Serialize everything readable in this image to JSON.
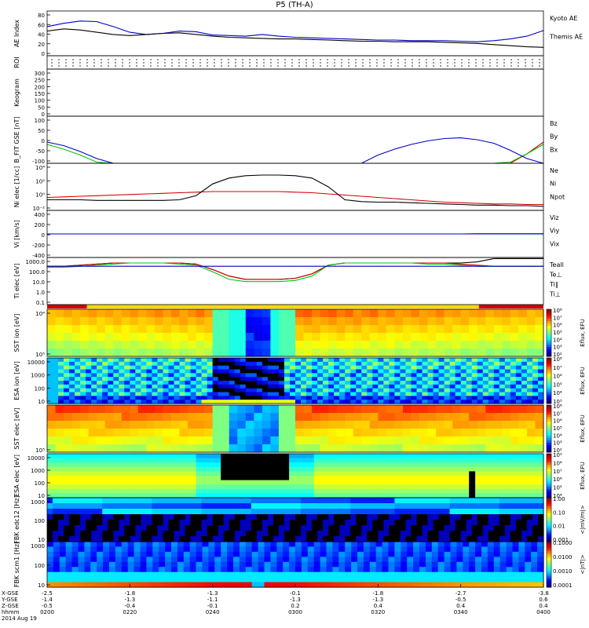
{
  "title": "P5 (TH-A)",
  "colors": {
    "black": "#000000",
    "red": "#d40000",
    "green": "#00c800",
    "blue": "#0000c8",
    "yellow": "#ffd700"
  },
  "chart_data": [
    {
      "type": "line",
      "panel": "ae",
      "ylabel": "AE Index",
      "ylim": [
        0,
        80
      ],
      "yticks": [
        "0",
        "20",
        "40",
        "60",
        "80"
      ],
      "x": [
        0,
        4,
        8,
        12,
        16,
        20,
        24,
        28,
        32,
        36,
        40,
        44,
        48,
        52,
        56,
        60,
        64,
        68,
        72,
        76,
        80,
        84,
        88,
        92,
        96,
        100,
        104,
        108,
        112,
        116,
        120
      ],
      "series": [
        {
          "name": "Kyoto AE",
          "color": "#0000c8",
          "values": [
            52,
            58,
            62,
            61,
            52,
            42,
            38,
            40,
            44,
            43,
            37,
            36,
            35,
            38,
            35,
            33,
            32,
            31,
            30,
            29,
            28,
            28,
            27,
            27,
            27,
            26,
            25,
            27,
            30,
            35,
            45
          ]
        },
        {
          "name": "Themis AE",
          "color": "#000000",
          "values": [
            44,
            48,
            46,
            42,
            38,
            36,
            38,
            40,
            41,
            38,
            35,
            33,
            32,
            31,
            30,
            30,
            29,
            28,
            27,
            26,
            26,
            25,
            25,
            25,
            24,
            23,
            22,
            20,
            18,
            16,
            15
          ]
        }
      ]
    },
    {
      "type": "table",
      "panel": "roi",
      "ylabel": "ROI"
    },
    {
      "type": "line",
      "panel": "keogram",
      "ylabel": "Keogram",
      "ylim": [
        0,
        300
      ],
      "yticks": [
        "0",
        "50",
        "100",
        "150",
        "200",
        "250",
        "300"
      ]
    },
    {
      "type": "line",
      "panel": "bfield",
      "ylabel": "B_FIT GSE [nT]",
      "ylim": [
        -100,
        100
      ],
      "yticks": [
        "-100",
        "-50",
        "0",
        "50",
        "100"
      ],
      "x": [
        0,
        4,
        8,
        12,
        16,
        20,
        24,
        28,
        32,
        36,
        40,
        44,
        48,
        52,
        56,
        60,
        64,
        68,
        72,
        76,
        80,
        84,
        88,
        92,
        96,
        100,
        104,
        108,
        112,
        116,
        120
      ],
      "series": [
        {
          "name": "Bz",
          "color": "#d40000",
          "values": [
            -100,
            -100,
            -100,
            -100,
            -100,
            -100,
            -100,
            -100,
            -100,
            -100,
            -100,
            -100,
            -100,
            -100,
            -100,
            -100,
            -100,
            -100,
            -100,
            -100,
            -100,
            -100,
            -100,
            -100,
            -100,
            -100,
            -100,
            -100,
            -100,
            -60,
            -10
          ]
        },
        {
          "name": "By",
          "color": "#00c800",
          "values": [
            -20,
            -40,
            -65,
            -95,
            -100,
            -100,
            -100,
            -100,
            -100,
            -100,
            -100,
            -100,
            -100,
            -100,
            -100,
            -100,
            -100,
            -100,
            -100,
            -100,
            -100,
            -100,
            -100,
            -100,
            -100,
            -100,
            -100,
            -100,
            -95,
            -60,
            -20
          ]
        },
        {
          "name": "Bx",
          "color": "#0000c8",
          "values": [
            -10,
            -25,
            -50,
            -80,
            -100,
            -100,
            -100,
            -100,
            -100,
            -100,
            -100,
            -100,
            -100,
            -100,
            -100,
            -100,
            -100,
            -100,
            -100,
            -100,
            -65,
            -40,
            -20,
            -5,
            5,
            8,
            0,
            -15,
            -45,
            -80,
            -100
          ]
        }
      ]
    },
    {
      "type": "line",
      "panel": "density",
      "ylabel": "Ni elec [1/cc]",
      "ylim": [
        -3,
        5
      ],
      "yticks": [
        "10⁻²",
        "10⁰",
        "10²",
        "10⁴"
      ],
      "x": [
        0,
        4,
        8,
        12,
        16,
        20,
        24,
        28,
        32,
        36,
        40,
        44,
        48,
        52,
        56,
        60,
        64,
        68,
        72,
        76,
        80,
        84,
        88,
        92,
        96,
        100,
        104,
        108,
        112,
        116,
        120
      ],
      "series": [
        {
          "name": "Ne",
          "color": "#d40000",
          "values": [
            -0.8,
            -0.7,
            -0.6,
            -0.5,
            -0.4,
            -0.3,
            -0.2,
            -0.1,
            0.0,
            0.1,
            0.2,
            0.2,
            0.2,
            0.2,
            0.2,
            0.1,
            0.0,
            -0.2,
            -0.4,
            -0.6,
            -0.8,
            -1.0,
            -1.2,
            -1.4,
            -1.6,
            -1.7,
            -1.8,
            -1.9,
            -1.9,
            -2.0,
            -2.0
          ]
        },
        {
          "name": "Ni",
          "color": "#000000",
          "values": [
            -1.2,
            -1.2,
            -1.2,
            -1.3,
            -1.3,
            -1.3,
            -1.3,
            -1.3,
            -1.2,
            -0.5,
            1.5,
            2.5,
            2.9,
            3.0,
            3.0,
            2.9,
            2.5,
            1.0,
            -1.2,
            -1.5,
            -1.6,
            -1.6,
            -1.7,
            -1.8,
            -1.9,
            -2.0,
            -2.1,
            -2.1,
            -2.2,
            -2.2,
            -2.3
          ]
        },
        {
          "name": "Npot",
          "color": "#0000c8",
          "values": [
            -3,
            -3,
            -3,
            -3,
            -3,
            -3,
            -3,
            -3,
            -3,
            -3,
            -3,
            -3,
            -3,
            -3,
            -3,
            -3,
            -3,
            -3,
            -3,
            -3,
            -3,
            -3,
            -3,
            -3,
            -3,
            -3,
            -3,
            -3,
            -3,
            -3,
            -3
          ]
        }
      ]
    },
    {
      "type": "line",
      "panel": "velocity",
      "ylabel": "Vi [km/s]",
      "ylim": [
        -500,
        500
      ],
      "yticks": [
        "-400",
        "-200",
        "0",
        "200",
        "400"
      ],
      "x": [
        0,
        4,
        8,
        12,
        16,
        20,
        24,
        28,
        32,
        36,
        40,
        44,
        48,
        52,
        56,
        60,
        64,
        68,
        72,
        76,
        80,
        84,
        88,
        92,
        96,
        100,
        104,
        108,
        112,
        116,
        120
      ],
      "series": [
        {
          "name": "Viz",
          "color": "#d40000",
          "values": [
            0,
            0,
            0,
            0,
            0,
            0,
            0,
            0,
            0,
            0,
            0,
            0,
            0,
            0,
            0,
            0,
            0,
            0,
            0,
            0,
            0,
            0,
            0,
            0,
            0,
            0,
            5,
            5,
            5,
            5,
            5
          ]
        },
        {
          "name": "Viy",
          "color": "#00c800",
          "values": [
            0,
            0,
            0,
            0,
            0,
            0,
            0,
            0,
            0,
            0,
            0,
            0,
            0,
            0,
            0,
            0,
            0,
            0,
            0,
            0,
            0,
            0,
            0,
            0,
            0,
            0,
            0,
            0,
            0,
            0,
            0
          ]
        },
        {
          "name": "Vix",
          "color": "#0000c8",
          "values": [
            0,
            0,
            0,
            0,
            0,
            0,
            0,
            0,
            0,
            0,
            0,
            0,
            0,
            0,
            0,
            0,
            0,
            0,
            0,
            0,
            0,
            0,
            0,
            0,
            0,
            0,
            0,
            0,
            0,
            0,
            0
          ]
        }
      ]
    },
    {
      "type": "line",
      "panel": "temperature",
      "ylabel": "Ti elec [eV]",
      "ylim": [
        -1,
        3.3
      ],
      "yticks": [
        "0.1",
        "1.0",
        "10.0",
        "100.0",
        "1000.0"
      ],
      "x": [
        0,
        4,
        8,
        12,
        16,
        20,
        24,
        28,
        32,
        36,
        40,
        44,
        48,
        52,
        56,
        60,
        64,
        68,
        72,
        76,
        80,
        84,
        88,
        92,
        96,
        100,
        104,
        108,
        112,
        116,
        120
      ],
      "series": [
        {
          "name": "Teall",
          "color": "#000000",
          "values": [
            2.5,
            2.5,
            2.6,
            2.7,
            2.8,
            2.8,
            2.8,
            2.8,
            2.8,
            2.7,
            2.2,
            1.6,
            1.3,
            1.3,
            1.3,
            1.4,
            1.8,
            2.6,
            2.8,
            2.8,
            2.8,
            2.8,
            2.8,
            2.8,
            2.8,
            2.8,
            2.9,
            3.2,
            3.2,
            3.2,
            3.2
          ]
        },
        {
          "name": "Te⊥",
          "color": "#d40000",
          "values": [
            2.5,
            2.5,
            2.6,
            2.7,
            2.8,
            2.8,
            2.8,
            2.8,
            2.8,
            2.7,
            2.2,
            1.6,
            1.3,
            1.3,
            1.3,
            1.4,
            1.8,
            2.6,
            2.8,
            2.8,
            2.8,
            2.8,
            2.8,
            2.8,
            2.8,
            2.7,
            2.6,
            2.5,
            2.5,
            2.5,
            2.5
          ]
        },
        {
          "name": "Ti∥",
          "color": "#00c800",
          "values": [
            2.4,
            2.4,
            2.5,
            2.6,
            2.7,
            2.8,
            2.8,
            2.8,
            2.7,
            2.6,
            2.0,
            1.3,
            1.1,
            1.1,
            1.1,
            1.2,
            1.6,
            2.6,
            2.8,
            2.8,
            2.8,
            2.8,
            2.8,
            2.7,
            2.7,
            2.6,
            2.5,
            2.5,
            2.5,
            2.5,
            2.5
          ]
        },
        {
          "name": "Ti⊥",
          "color": "#0000c8",
          "values": [
            2.5,
            2.5,
            2.5,
            2.5,
            2.5,
            2.5,
            2.5,
            2.5,
            2.5,
            2.5,
            2.5,
            2.5,
            2.5,
            2.5,
            2.5,
            2.5,
            2.5,
            2.5,
            2.5,
            2.5,
            2.5,
            2.5,
            2.5,
            2.5,
            2.5,
            2.5,
            2.5,
            2.5,
            2.5,
            2.5,
            2.5
          ]
        }
      ]
    },
    {
      "type": "heatmap",
      "panel": "sst_ion",
      "ylabel": "SST ion [eV]",
      "yticks": [
        "10⁵",
        "10⁴"
      ],
      "colorbar_label": "Eflux, EFU",
      "colorbar_ticks": [
        "10²",
        "10³",
        "10⁴",
        "10⁵",
        "10⁶",
        "10⁷",
        "10⁸"
      ]
    },
    {
      "type": "heatmap",
      "panel": "esa_ion",
      "ylabel": "ESA ion [eV]",
      "yticks": [
        "10",
        "100",
        "1000",
        "10000"
      ],
      "colorbar_label": "Eflux, EFU",
      "colorbar_ticks": [
        "10³",
        "10⁴",
        "10⁵",
        "10⁶",
        "10⁷",
        "10⁸"
      ]
    },
    {
      "type": "heatmap",
      "panel": "sst_elec",
      "ylabel": "SST elec [eV]",
      "yticks": [
        "10⁵"
      ],
      "colorbar_label": "Eflux, EFU",
      "colorbar_ticks": [
        "10²",
        "10³",
        "10⁴",
        "10⁵",
        "10⁶",
        "10⁷",
        "10⁸"
      ]
    },
    {
      "type": "heatmap",
      "panel": "esa_elec",
      "ylabel": "ESA elec [eV]",
      "yticks": [
        "10",
        "100",
        "1000",
        "10000"
      ],
      "colorbar_label": "Eflux, EFU",
      "colorbar_ticks": [
        "10⁴",
        "10⁵",
        "10⁶",
        "10⁷",
        "10⁸",
        "10⁹"
      ]
    },
    {
      "type": "heatmap",
      "panel": "fbk_edc",
      "ylabel": "FBK edc12 [Hz]",
      "yticks": [
        "10",
        "100",
        "1000"
      ],
      "colorbar_label": "<|mV/m|>",
      "colorbar_ticks": [
        "0.001",
        "0.01",
        "0.10",
        "1.00"
      ]
    },
    {
      "type": "heatmap",
      "panel": "fbk_scm",
      "ylabel": "FBK scm1 [Hz]",
      "yticks": [
        "10",
        "100",
        "1000"
      ],
      "colorbar_label": "<|nT|>",
      "colorbar_ticks": [
        "0.0001",
        "0.0010",
        "0.0100",
        "0.1000"
      ]
    }
  ],
  "xaxis": {
    "row_labels": [
      "X-GSE",
      "Y-GSE",
      "Z-GSE",
      "hhmm",
      "2014 Aug 19"
    ],
    "ticks": [
      {
        "x": "-2.5",
        "y": "-1.4",
        "z": "-0.5",
        "t": "0200"
      },
      {
        "x": "-1.8",
        "y": "-1.3",
        "z": "-0.4",
        "t": "0220"
      },
      {
        "x": "-1.3",
        "y": "-1.1",
        "z": "-0.1",
        "t": "0240"
      },
      {
        "x": "-0.1",
        "y": "-1.3",
        "z": "0.2",
        "t": "0300"
      },
      {
        "x": "-1.8",
        "y": "-1.3",
        "z": "0.4",
        "t": "0320"
      },
      {
        "x": "-2.7",
        "y": "-0.5",
        "z": "0.4",
        "t": "0340"
      },
      {
        "x": "-3.8",
        "y": "0.6",
        "z": "0.4",
        "t": "0400"
      }
    ]
  },
  "legend_labels": {
    "ae": [
      "Kyoto AE",
      "Themis AE"
    ],
    "bfield": [
      "Bz",
      "By",
      "Bx"
    ],
    "density": [
      "Ne",
      "Ni",
      "Npot"
    ],
    "velocity": [
      "Viz",
      "Viy",
      "Vix"
    ],
    "temperature": [
      "Teall",
      "Te⊥",
      "Ti∥",
      "Ti⊥"
    ]
  },
  "axis_labels": {
    "ae": "AE Index",
    "roi": "ROI",
    "keogram": "Keogram",
    "bfield": "B_FIT GSE [nT]",
    "density": "Ni elec [1/cc]",
    "velocity": "Vi [km/s]",
    "temperature": "Ti elec [eV]",
    "sst_ion": "SST ion [eV]",
    "esa_ion": "ESA ion [eV]",
    "sst_elec": "SST elec [eV]",
    "esa_elec": "ESA elec [eV]",
    "fbk_edc": "FBK edc12 [Hz]",
    "fbk_scm": "FBK scm1 [Hz]"
  }
}
